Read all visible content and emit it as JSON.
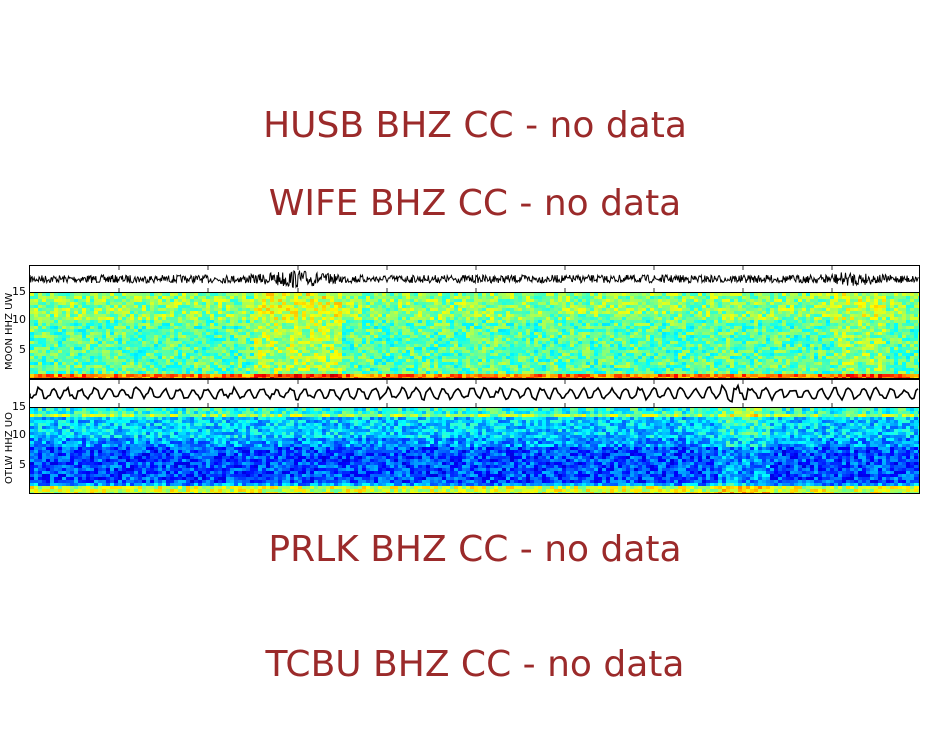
{
  "missing_stations": [
    {
      "label": "HUSB BHZ CC - no data"
    },
    {
      "label": "WIFE BHZ CC - no data"
    },
    {
      "label": "PRLK BHZ CC - no data"
    },
    {
      "label": "TCBU BHZ CC - no data"
    }
  ],
  "colors": {
    "no_data_text": "#9b2a2a",
    "waveform": "#000000",
    "colormap": "jet"
  },
  "chart_data": [
    {
      "type": "heatmap",
      "title": "",
      "station": "MOON HHZ UW",
      "ylabel": "MOON HHZ UW",
      "yticks": [
        "5",
        "10",
        "15"
      ],
      "ylim": [
        0,
        16
      ],
      "xticks_count": 11,
      "has_waveform_trace": true,
      "description": "Spectrogram, mostly cyan/green with yellow band at lowest frequency; elevated energy around 300px and 850px"
    },
    {
      "type": "heatmap",
      "title": "",
      "station": "OTLW HHZ UO",
      "ylabel": "OTLW HHZ UO",
      "yticks": [
        "5",
        "10",
        "15"
      ],
      "ylim": [
        0,
        16
      ],
      "xticks_count": 11,
      "has_waveform_trace": true,
      "description": "Spectrogram, mostly blue with cyan/yellow bands near 14 Hz and lowest frequency; waveform burst near 735px"
    }
  ]
}
